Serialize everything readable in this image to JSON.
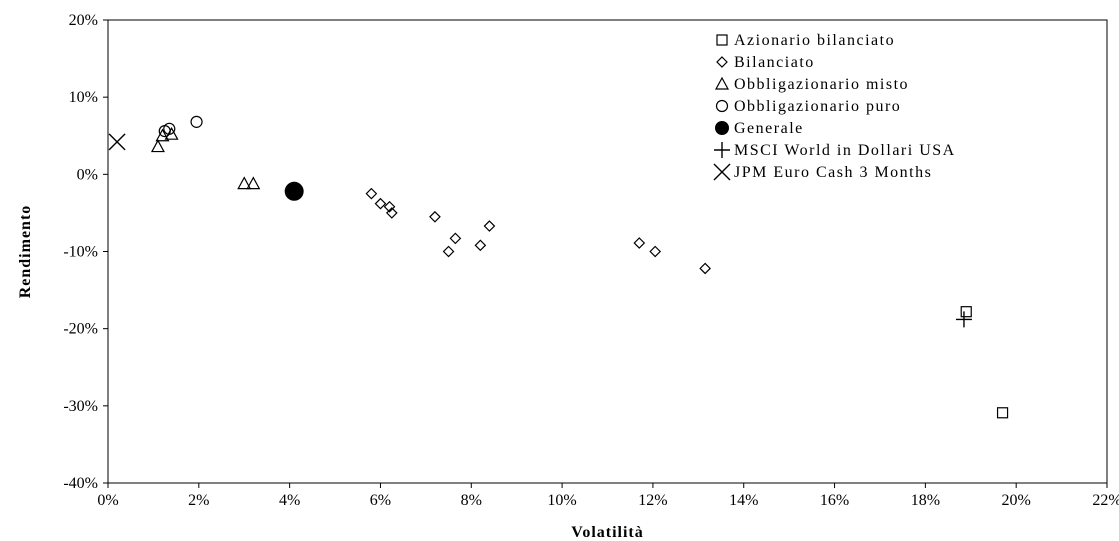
{
  "chart_data": {
    "type": "scatter",
    "xlabel": "Volatilità",
    "ylabel": "Rendimento",
    "xlim": [
      0,
      22
    ],
    "ylim": [
      -40,
      20
    ],
    "x_ticks": [
      "0%",
      "2%",
      "4%",
      "6%",
      "8%",
      "10%",
      "12%",
      "14%",
      "16%",
      "18%",
      "20%",
      "22%"
    ],
    "y_ticks": [
      "20%",
      "10%",
      "0%",
      "-10%",
      "-20%",
      "-30%",
      "-40%"
    ],
    "grid": false,
    "legend_position": "top-right",
    "series": [
      {
        "name": "Azionario bilanciato",
        "marker": "square",
        "points": [
          [
            18.9,
            -17.8
          ],
          [
            19.7,
            -30.9
          ]
        ]
      },
      {
        "name": "Bilanciato",
        "marker": "diamond",
        "points": [
          [
            5.8,
            -2.5
          ],
          [
            6.0,
            -3.8
          ],
          [
            6.2,
            -4.2
          ],
          [
            6.25,
            -5.0
          ],
          [
            7.2,
            -5.5
          ],
          [
            7.5,
            -10.0
          ],
          [
            7.65,
            -8.3
          ],
          [
            8.2,
            -9.2
          ],
          [
            8.4,
            -6.7
          ],
          [
            11.7,
            -8.9
          ],
          [
            12.05,
            -10.0
          ],
          [
            13.15,
            -12.2
          ]
        ]
      },
      {
        "name": "Obbligazionario misto",
        "marker": "triangle",
        "points": [
          [
            1.1,
            3.6
          ],
          [
            1.2,
            5.0
          ],
          [
            1.4,
            5.2
          ],
          [
            3.0,
            -1.2
          ],
          [
            3.2,
            -1.2
          ]
        ]
      },
      {
        "name": "Obbligazionario puro",
        "marker": "circle",
        "points": [
          [
            1.25,
            5.6
          ],
          [
            1.35,
            5.9
          ],
          [
            1.95,
            6.8
          ]
        ]
      },
      {
        "name": "Generale",
        "marker": "filled-circle",
        "points": [
          [
            4.1,
            -2.2
          ]
        ]
      },
      {
        "name": "MSCI World in Dollari USA",
        "marker": "plus",
        "points": [
          [
            18.85,
            -18.8
          ]
        ]
      },
      {
        "name": "JPM Euro Cash 3 Months",
        "marker": "cross",
        "points": [
          [
            0.2,
            4.2
          ]
        ]
      }
    ]
  }
}
